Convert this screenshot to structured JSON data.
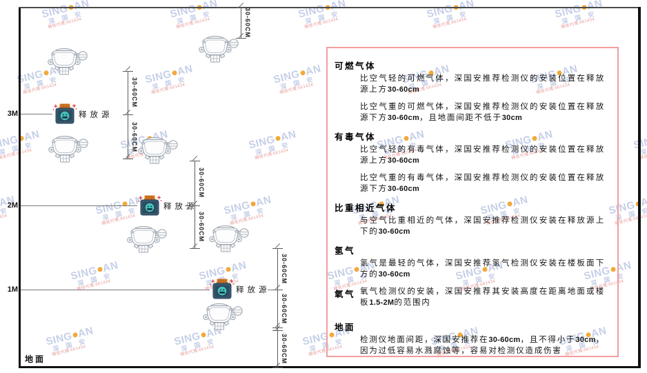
{
  "watermark": {
    "line1_left": "SING",
    "line1_right": "AN",
    "line2": "深 国 安",
    "line3": "微信代理:661434",
    "dot_color": "#f2a93b",
    "text_color": "#c5cfe7",
    "red_color": "#e59a96"
  },
  "diagram": {
    "heights": [
      "3M",
      "2M",
      "1M"
    ],
    "ground_label": "地面",
    "release_source_label": "释放源",
    "dim_label": "30-60CM"
  },
  "colors": {
    "panel_border": "#f49c9c",
    "source_body": "#3b5a70",
    "source_cap": "#dd7d26",
    "source_circle": "#46c0ba",
    "detector_outline": "#9aa3ad"
  },
  "panel": {
    "sections": [
      {
        "heading": "可燃气体",
        "layout": "block",
        "paragraphs": [
          [
            {
              "t": "比空气轻的可燃气体，深国安推荐检测仪的安装位置在释放源上方"
            },
            {
              "t": "30-60cm",
              "b": true
            }
          ],
          [
            {
              "t": "比空气重的可燃气体，深国安推荐检测仪的安装位置在释放源下方"
            },
            {
              "t": "30-60cm",
              "b": true
            },
            {
              "t": "，且地面间距不低于"
            },
            {
              "t": "30cm",
              "b": true
            }
          ]
        ]
      },
      {
        "heading": "有毒气体",
        "layout": "block",
        "paragraphs": [
          [
            {
              "t": "比空气轻的有毒气体，深国安推荐检测仪的安装位置在释放源上方"
            },
            {
              "t": "30-60cm",
              "b": true
            }
          ],
          [
            {
              "t": "比空气重的有毒气体，深国安推荐检测仪的安装位置在释放源下方"
            },
            {
              "t": "30-60cm",
              "b": true
            }
          ]
        ]
      },
      {
        "heading": "比重相近气体",
        "layout": "block",
        "paragraphs": [
          [
            {
              "t": "与空气比重相近的气体，深国安推荐检测仪安装在释放源上下的"
            },
            {
              "t": "30-60cm",
              "b": true
            }
          ]
        ]
      },
      {
        "heading": "氢气",
        "layout": "block",
        "paragraphs": [
          [
            {
              "t": "氢气是最轻的气体，深国安推荐氢气检测仪安装在楼板面下方的"
            },
            {
              "t": "30-60cm",
              "b": true
            }
          ]
        ]
      },
      {
        "heading": "氧气",
        "layout": "inline",
        "paragraphs": [
          [
            {
              "t": "氧气检测仪的安装，深国安推荐其安装高度在距离地面或楼板"
            },
            {
              "t": "1.5-2M",
              "b": true
            },
            {
              "t": "的范围内"
            }
          ]
        ]
      },
      {
        "heading": "地面",
        "layout": "block",
        "extra_gap": true,
        "paragraphs": [
          [
            {
              "t": "检测仪地面间距，深国安推荐在"
            },
            {
              "t": "30-60cm",
              "b": true
            },
            {
              "t": "，且不得小于"
            },
            {
              "t": "30cm",
              "b": true
            },
            {
              "t": "，因为过低容易水溅腐蚀等，容易对检测仪造成伤害"
            }
          ]
        ]
      }
    ]
  }
}
